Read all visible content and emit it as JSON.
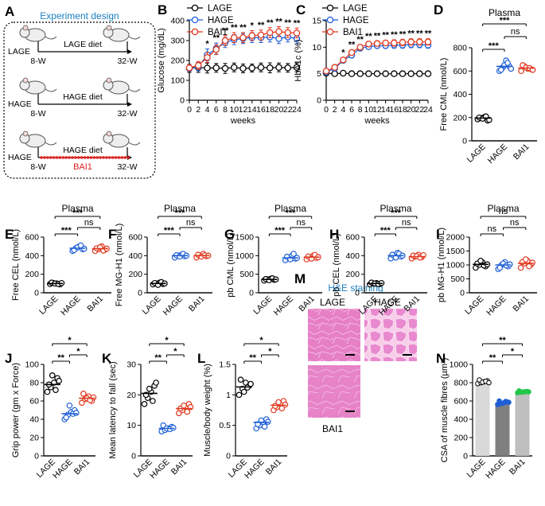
{
  "panel_letters": [
    "A",
    "B",
    "C",
    "D",
    "E",
    "F",
    "G",
    "H",
    "I",
    "J",
    "K",
    "L",
    "M",
    "N"
  ],
  "colors": {
    "LAGE": "#000000",
    "HAGE": "#1f5fd6",
    "BAI1": "#e0381f",
    "accent_title": "#1a7fc1",
    "bai1_bar": "#e32020",
    "bar_LAGE": "#d9d9d9",
    "bar_HAGE": "#7f7f7f",
    "bar_BAI1": "#bfbfbf",
    "green_dot": "#22c74a"
  },
  "schematic": {
    "title": "Experiment design",
    "rows": [
      {
        "group": "LAGE",
        "diet": "LAGE diet",
        "start": "8-W",
        "end": "32-W"
      },
      {
        "group": "HAGE",
        "diet": "HAGE diet",
        "start": "8-W",
        "end": "32-W"
      },
      {
        "group": "HAGE",
        "diet": "HAGE diet",
        "start": "8-W",
        "end": "32-W",
        "treatment": "BAI1"
      }
    ]
  },
  "he_panel": {
    "title": "H&E staining",
    "labels": [
      "LAGE",
      "HAGE",
      "BAI1"
    ]
  },
  "chart_data": [
    {
      "id": "B",
      "type": "line",
      "xlabel": "weeks",
      "ylabel": "Glucose (mg/dL)",
      "xlim": [
        0,
        24
      ],
      "ylim": [
        0,
        400
      ],
      "xticks": [
        0,
        2,
        4,
        6,
        8,
        10,
        12,
        14,
        16,
        18,
        20,
        22,
        24
      ],
      "yticks": [
        0,
        100,
        200,
        300,
        400
      ],
      "legend": [
        "LAGE",
        "HAGE",
        "BAI1"
      ],
      "legend_position": "top-left",
      "x": [
        0,
        2,
        4,
        6,
        8,
        10,
        12,
        14,
        16,
        18,
        20,
        22,
        24
      ],
      "series": [
        {
          "name": "LAGE",
          "values": [
            160,
            165,
            162,
            163,
            160,
            165,
            160,
            162,
            165,
            163,
            165,
            163,
            165
          ],
          "err": [
            20,
            25,
            25,
            22,
            25,
            22,
            22,
            20,
            22,
            25,
            22,
            22,
            22
          ]
        },
        {
          "name": "HAGE",
          "values": [
            160,
            168,
            228,
            260,
            290,
            305,
            310,
            315,
            315,
            318,
            310,
            318,
            310
          ],
          "err": [
            15,
            20,
            30,
            28,
            25,
            25,
            25,
            25,
            25,
            25,
            25,
            25,
            25
          ]
        },
        {
          "name": "BAI1",
          "values": [
            163,
            175,
            215,
            255,
            300,
            315,
            315,
            325,
            328,
            340,
            345,
            340,
            338
          ],
          "err": [
            15,
            20,
            25,
            25,
            25,
            25,
            25,
            25,
            25,
            25,
            25,
            25,
            25
          ]
        }
      ],
      "annotations": [
        {
          "x": 4,
          "text": "*"
        },
        {
          "x": 6,
          "text": "**"
        },
        {
          "x": 8,
          "text": "**"
        },
        {
          "x": 10,
          "text": "**"
        },
        {
          "x": 12,
          "text": "**"
        },
        {
          "x": 14,
          "text": "*"
        },
        {
          "x": 16,
          "text": "**"
        },
        {
          "x": 18,
          "text": "**"
        },
        {
          "x": 20,
          "text": "**"
        },
        {
          "x": 22,
          "text": "**"
        },
        {
          "x": 24,
          "text": "**"
        }
      ]
    },
    {
      "id": "C",
      "type": "line",
      "xlabel": "weeks",
      "ylabel": "HbA1c (%)",
      "xlim": [
        0,
        24
      ],
      "ylim": [
        0,
        15
      ],
      "xticks": [
        0,
        2,
        4,
        6,
        8,
        10,
        12,
        14,
        16,
        18,
        20,
        22,
        24
      ],
      "yticks": [
        0,
        5,
        10,
        15
      ],
      "legend": [
        "LAGE",
        "HAGE",
        "BAI1"
      ],
      "legend_position": "top-left",
      "x": [
        0,
        2,
        4,
        6,
        8,
        10,
        12,
        14,
        16,
        18,
        20,
        22,
        24
      ],
      "series": [
        {
          "name": "LAGE",
          "values": [
            5.1,
            5.0,
            5.1,
            5.0,
            5.0,
            5.0,
            5.0,
            5.0,
            5.0,
            5.0,
            5.0,
            5.0,
            5.0
          ],
          "err": [
            0.3,
            0.3,
            0.3,
            0.3,
            0.3,
            0.3,
            0.3,
            0.3,
            0.3,
            0.3,
            0.3,
            0.3,
            0.3
          ]
        },
        {
          "name": "HAGE",
          "values": [
            5.3,
            6.0,
            7.5,
            8.5,
            9.8,
            10.1,
            10.3,
            10.3,
            10.4,
            10.4,
            10.5,
            10.5,
            10.4
          ],
          "err": [
            0.3,
            0.3,
            0.4,
            0.5,
            0.5,
            0.5,
            0.5,
            0.5,
            0.6,
            0.6,
            0.6,
            0.6,
            0.6
          ]
        },
        {
          "name": "BAI1",
          "values": [
            5.5,
            6.2,
            7.6,
            9.0,
            10.0,
            10.6,
            10.7,
            10.8,
            10.8,
            10.9,
            11.0,
            11.0,
            11.0
          ],
          "err": [
            0.3,
            0.3,
            0.4,
            0.5,
            0.5,
            0.5,
            0.5,
            0.5,
            0.6,
            0.6,
            0.6,
            0.6,
            0.6
          ]
        }
      ],
      "annotations": [
        {
          "x": 4,
          "text": "*"
        },
        {
          "x": 6,
          "text": "**"
        },
        {
          "x": 8,
          "text": "**"
        },
        {
          "x": 10,
          "text": "**"
        },
        {
          "x": 12,
          "text": "**"
        },
        {
          "x": 14,
          "text": "**"
        },
        {
          "x": 16,
          "text": "**"
        },
        {
          "x": 18,
          "text": "**"
        },
        {
          "x": 20,
          "text": "**"
        },
        {
          "x": 22,
          "text": "**"
        },
        {
          "x": 24,
          "text": "**"
        }
      ]
    },
    {
      "id": "D",
      "type": "scatter",
      "title": "Plasma",
      "ylabel": "Free CML (nmol/L)",
      "ylim": [
        0,
        800
      ],
      "yticks": [
        0,
        200,
        400,
        600,
        800
      ],
      "categories": [
        "LAGE",
        "HAGE",
        "BAI1"
      ],
      "points": [
        [
          185,
          195,
          205,
          175,
          200,
          190,
          210,
          180
        ],
        [
          600,
          630,
          690,
          640,
          610,
          650,
          670,
          620
        ],
        [
          600,
          640,
          620,
          615,
          650,
          630,
          625,
          610
        ]
      ],
      "means": [
        195,
        640,
        625
      ],
      "brackets": [
        {
          "from": 0,
          "to": 1,
          "label": "***"
        },
        {
          "from": 1,
          "to": 2,
          "label": "ns"
        },
        {
          "from": 0,
          "to": 2,
          "label": "***"
        }
      ]
    },
    {
      "id": "E",
      "type": "scatter",
      "title": "Plasma",
      "ylabel": "Free CEL (nmol/L)",
      "ylim": [
        0,
        600
      ],
      "yticks": [
        0,
        200,
        400,
        600
      ],
      "categories": [
        "LAGE",
        "HAGE",
        "BAI1"
      ],
      "points": [
        [
          95,
          105,
          100,
          90,
          110,
          100,
          95,
          105
        ],
        [
          450,
          480,
          500,
          470,
          460,
          490,
          510,
          475
        ],
        [
          450,
          470,
          500,
          465,
          480,
          490,
          455,
          475
        ]
      ],
      "means": [
        100,
        480,
        475
      ],
      "brackets": [
        {
          "from": 0,
          "to": 1,
          "label": "***"
        },
        {
          "from": 1,
          "to": 2,
          "label": "ns"
        },
        {
          "from": 0,
          "to": 2,
          "label": "***"
        }
      ]
    },
    {
      "id": "F",
      "type": "scatter",
      "title": "Plasma",
      "ylabel": "Free MG-H1 (nmol/L)",
      "ylim": [
        0,
        600
      ],
      "yticks": [
        0,
        200,
        400,
        600
      ],
      "categories": [
        "LAGE",
        "HAGE",
        "BAI1"
      ],
      "points": [
        [
          90,
          100,
          110,
          95,
          105,
          85,
          115,
          100
        ],
        [
          380,
          400,
          410,
          395,
          405,
          390,
          420,
          400
        ],
        [
          380,
          400,
          420,
          395,
          410,
          390,
          405,
          400
        ]
      ],
      "means": [
        100,
        400,
        400
      ],
      "brackets": [
        {
          "from": 0,
          "to": 1,
          "label": "***"
        },
        {
          "from": 1,
          "to": 2,
          "label": "ns"
        },
        {
          "from": 0,
          "to": 2,
          "label": "***"
        }
      ]
    },
    {
      "id": "G",
      "type": "scatter",
      "title": "Plasma",
      "ylabel": "pb CML (nmol/L)",
      "ylim": [
        0,
        1500
      ],
      "yticks": [
        0,
        500,
        1000,
        1500
      ],
      "categories": [
        "LAGE",
        "HAGE",
        "BAI1"
      ],
      "points": [
        [
          330,
          360,
          380,
          350,
          370,
          340,
          390,
          360
        ],
        [
          880,
          950,
          1000,
          920,
          970,
          900,
          1050,
          940
        ],
        [
          900,
          960,
          1000,
          940,
          980,
          920,
          1020,
          960
        ]
      ],
      "means": [
        360,
        940,
        960
      ],
      "brackets": [
        {
          "from": 0,
          "to": 1,
          "label": "***"
        },
        {
          "from": 1,
          "to": 2,
          "label": "ns"
        },
        {
          "from": 0,
          "to": 2,
          "label": "***"
        }
      ]
    },
    {
      "id": "H",
      "type": "scatter",
      "title": "Plasma",
      "ylabel": "pb CEL (nmol/L)",
      "ylim": [
        0,
        600
      ],
      "yticks": [
        0,
        200,
        400,
        600
      ],
      "categories": [
        "LAGE",
        "HAGE",
        "BAI1"
      ],
      "points": [
        [
          90,
          100,
          105,
          95,
          110,
          100,
          95,
          105
        ],
        [
          370,
          400,
          430,
          390,
          410,
          380,
          420,
          400
        ],
        [
          370,
          390,
          410,
          385,
          400,
          395,
          380,
          405
        ]
      ],
      "means": [
        100,
        400,
        390
      ],
      "brackets": [
        {
          "from": 0,
          "to": 1,
          "label": "***"
        },
        {
          "from": 1,
          "to": 2,
          "label": "ns"
        },
        {
          "from": 0,
          "to": 2,
          "label": "***"
        }
      ]
    },
    {
      "id": "I",
      "type": "scatter",
      "title": "Plasma",
      "ylabel": "pb MG-H1 (nmol/L)",
      "ylim": [
        0,
        2000
      ],
      "yticks": [
        0,
        500,
        1000,
        1500,
        2000
      ],
      "categories": [
        "LAGE",
        "HAGE",
        "BAI1"
      ],
      "points": [
        [
          900,
          1000,
          1100,
          950,
          1050,
          1150,
          980,
          1020
        ],
        [
          850,
          1000,
          1100,
          950,
          900,
          1050,
          980,
          1020
        ],
        [
          900,
          1050,
          1150,
          1000,
          1100,
          1200,
          950,
          1080
        ]
      ],
      "means": [
        1020,
        1000,
        1060
      ],
      "brackets": [
        {
          "from": 0,
          "to": 1,
          "label": "ns"
        },
        {
          "from": 1,
          "to": 2,
          "label": "ns"
        },
        {
          "from": 0,
          "to": 2,
          "label": "ns"
        }
      ]
    },
    {
      "id": "J",
      "type": "scatter",
      "ylabel": "Grip power (gm x Force)",
      "ylim": [
        0,
        100
      ],
      "yticks": [
        0,
        20,
        40,
        60,
        80,
        100
      ],
      "categories": [
        "LAGE",
        "HAGE",
        "BAI1"
      ],
      "points": [
        [
          70,
          75,
          80,
          85,
          78,
          88,
          72,
          82
        ],
        [
          40,
          45,
          48,
          50,
          42,
          55,
          46,
          47
        ],
        [
          58,
          62,
          65,
          60,
          68,
          63,
          61,
          64
        ]
      ],
      "means": [
        78,
        46,
        63
      ],
      "brackets": [
        {
          "from": 0,
          "to": 1,
          "label": "**"
        },
        {
          "from": 1,
          "to": 2,
          "label": "*"
        },
        {
          "from": 0,
          "to": 2,
          "label": "*"
        }
      ]
    },
    {
      "id": "K",
      "type": "scatter",
      "ylabel": "Mean latency to fall (sec)",
      "ylim": [
        0,
        30
      ],
      "yticks": [
        0,
        10,
        20,
        30
      ],
      "categories": [
        "LAGE",
        "HAGE",
        "BAI1"
      ],
      "points": [
        [
          17,
          19,
          21,
          23,
          20,
          22,
          18,
          24
        ],
        [
          8,
          8.5,
          9,
          9.5,
          10,
          9,
          8.8,
          9.2
        ],
        [
          14,
          15,
          16,
          17,
          15.5,
          16.5,
          14.5,
          16
        ]
      ],
      "means": [
        20.5,
        9,
        15.5
      ],
      "brackets": [
        {
          "from": 0,
          "to": 1,
          "label": "**"
        },
        {
          "from": 1,
          "to": 2,
          "label": "*"
        },
        {
          "from": 0,
          "to": 2,
          "label": "*"
        }
      ]
    },
    {
      "id": "L",
      "type": "scatter",
      "ylabel": "Muscle/body weight (%)",
      "ylim": [
        0,
        1.5
      ],
      "yticks": [
        0.0,
        0.5,
        1.0,
        1.5
      ],
      "categories": [
        "LAGE",
        "HAGE",
        "BAI1"
      ],
      "points": [
        [
          1.0,
          1.1,
          1.2,
          1.15,
          1.25,
          1.05,
          1.12,
          1.18
        ],
        [
          0.45,
          0.5,
          0.55,
          0.6,
          0.52,
          0.58,
          0.48,
          0.56
        ],
        [
          0.75,
          0.8,
          0.85,
          0.9,
          0.82,
          0.88,
          0.78,
          0.84
        ]
      ],
      "means": [
        1.13,
        0.55,
        0.83
      ],
      "brackets": [
        {
          "from": 0,
          "to": 1,
          "label": "**"
        },
        {
          "from": 1,
          "to": 2,
          "label": "*"
        },
        {
          "from": 0,
          "to": 2,
          "label": "*"
        }
      ]
    },
    {
      "id": "N",
      "type": "bar",
      "ylabel": "CSA of muscle fibres (µm²)",
      "ylim": [
        0,
        1000
      ],
      "yticks": [
        0,
        200,
        400,
        600,
        800,
        1000
      ],
      "categories": [
        "LAGE",
        "HAGE",
        "BAI1"
      ],
      "values": [
        810,
        585,
        700
      ],
      "points": [
        [
          790,
          800,
          810,
          820,
          830,
          805,
          815,
          800
        ],
        [
          560,
          570,
          580,
          590,
          600,
          575,
          595,
          585
        ],
        [
          690,
          695,
          700,
          705,
          710,
          698,
          702,
          700
        ]
      ],
      "brackets": [
        {
          "from": 0,
          "to": 1,
          "label": "**"
        },
        {
          "from": 1,
          "to": 2,
          "label": "*"
        },
        {
          "from": 0,
          "to": 2,
          "label": "**"
        }
      ]
    }
  ]
}
